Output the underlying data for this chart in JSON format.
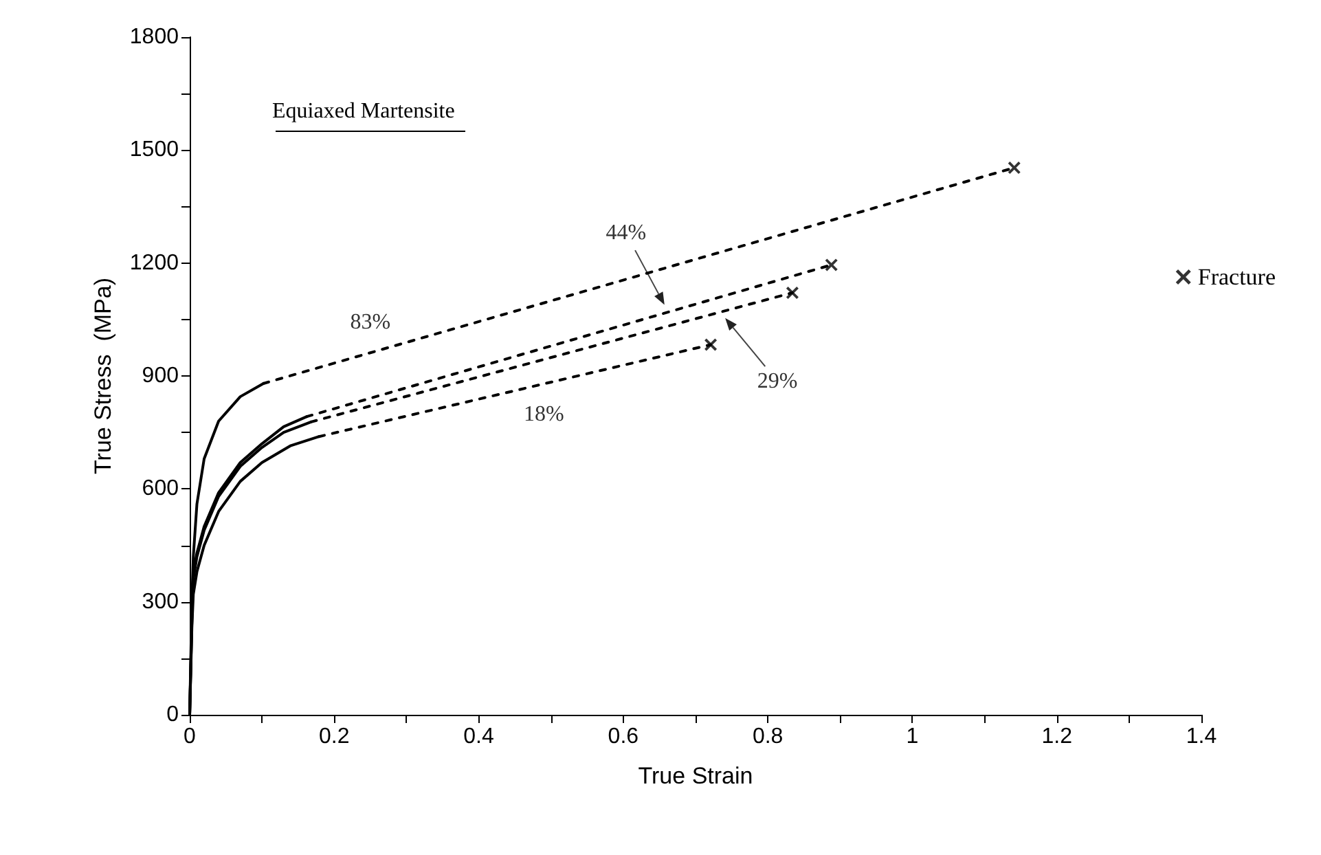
{
  "chart_data": {
    "type": "line",
    "xlabel": "True Strain",
    "ylabel": "True Stress  (MPa)",
    "xlim": [
      0,
      1.4
    ],
    "xticks": [
      0,
      {
        "value": 0.1,
        "label": null
      },
      0.2,
      {
        "value": 0.3,
        "label": null
      },
      0.4,
      {
        "value": 0.5,
        "label": null
      },
      0.6,
      {
        "value": 0.7,
        "label": null
      },
      0.8,
      {
        "value": 0.9,
        "label": null
      },
      1,
      {
        "value": 1.1,
        "label": null
      },
      1.2,
      {
        "value": 1.3,
        "label": null
      },
      1.4
    ],
    "ylim": [
      0,
      1800
    ],
    "yticks": [
      0,
      {
        "value": 150,
        "label": null
      },
      300,
      {
        "value": 450,
        "label": null
      },
      600,
      {
        "value": 750,
        "label": null
      },
      900,
      {
        "value": 1050,
        "label": null
      },
      1200,
      {
        "value": 1350,
        "label": null
      },
      1500,
      {
        "value": 1650,
        "label": null
      },
      1800
    ],
    "grid": false,
    "legend": "right",
    "marker": "none",
    "series": [
      {
        "type": "line",
        "color": "#000000",
        "line_style": "solid",
        "x": [
          0,
          0.002,
          0.003,
          0.005,
          0.01,
          0.02,
          0.04,
          0.07,
          0.102
        ],
        "values": [
          0,
          200,
          300,
          420,
          560,
          680,
          780,
          845,
          880
        ]
      },
      {
        "type": "line",
        "color": "#000000",
        "line_style": "solid",
        "x": [
          0,
          0.003,
          0.005,
          0.01,
          0.02,
          0.04,
          0.07,
          0.1,
          0.13,
          0.162
        ],
        "values": [
          0,
          250,
          380,
          430,
          500,
          590,
          670,
          720,
          765,
          792
        ]
      },
      {
        "type": "line",
        "color": "#000000",
        "line_style": "solid",
        "x": [
          0,
          0.003,
          0.005,
          0.01,
          0.02,
          0.04,
          0.07,
          0.1,
          0.13,
          0.168
        ],
        "values": [
          0,
          250,
          360,
          420,
          490,
          580,
          660,
          710,
          750,
          778
        ]
      },
      {
        "type": "line",
        "color": "#000000",
        "line_style": "solid",
        "x": [
          0,
          0.003,
          0.005,
          0.01,
          0.02,
          0.04,
          0.07,
          0.1,
          0.14,
          0.179
        ],
        "values": [
          0,
          230,
          320,
          380,
          450,
          540,
          620,
          670,
          715,
          739
        ]
      },
      {
        "type": "line",
        "color": "#000000",
        "line_style": "dashed",
        "x": [
          0.102,
          1.141
        ],
        "values": [
          880,
          1453
        ]
      },
      {
        "type": "line",
        "color": "#000000",
        "line_style": "dashed",
        "x": [
          0.162,
          0.888
        ],
        "values": [
          792,
          1195
        ]
      },
      {
        "type": "line",
        "color": "#000000",
        "line_style": "dashed",
        "x": [
          0.168,
          0.834
        ],
        "values": [
          778,
          1121
        ]
      },
      {
        "type": "line",
        "color": "#000000",
        "line_style": "dashed",
        "x": [
          0.179,
          0.721
        ],
        "values": [
          739,
          983
        ]
      },
      {
        "type": "scatter",
        "name": "Fracture",
        "color": "#000000",
        "marker": "cross",
        "x": [
          1.141,
          0.888,
          0.834,
          0.721
        ],
        "values": [
          1453,
          1195,
          1121,
          983
        ]
      }
    ],
    "annotations": [
      "Equiaxed Martensite",
      {
        "text": "83%",
        "x": 0.25,
        "y": 962
      },
      {
        "text": "44%",
        "x": 0.657,
        "y": 1089
      },
      {
        "text": "29%",
        "x": 0.741,
        "y": 1054
      },
      {
        "text": "18%",
        "x": 0.49,
        "y": 878
      }
    ]
  }
}
